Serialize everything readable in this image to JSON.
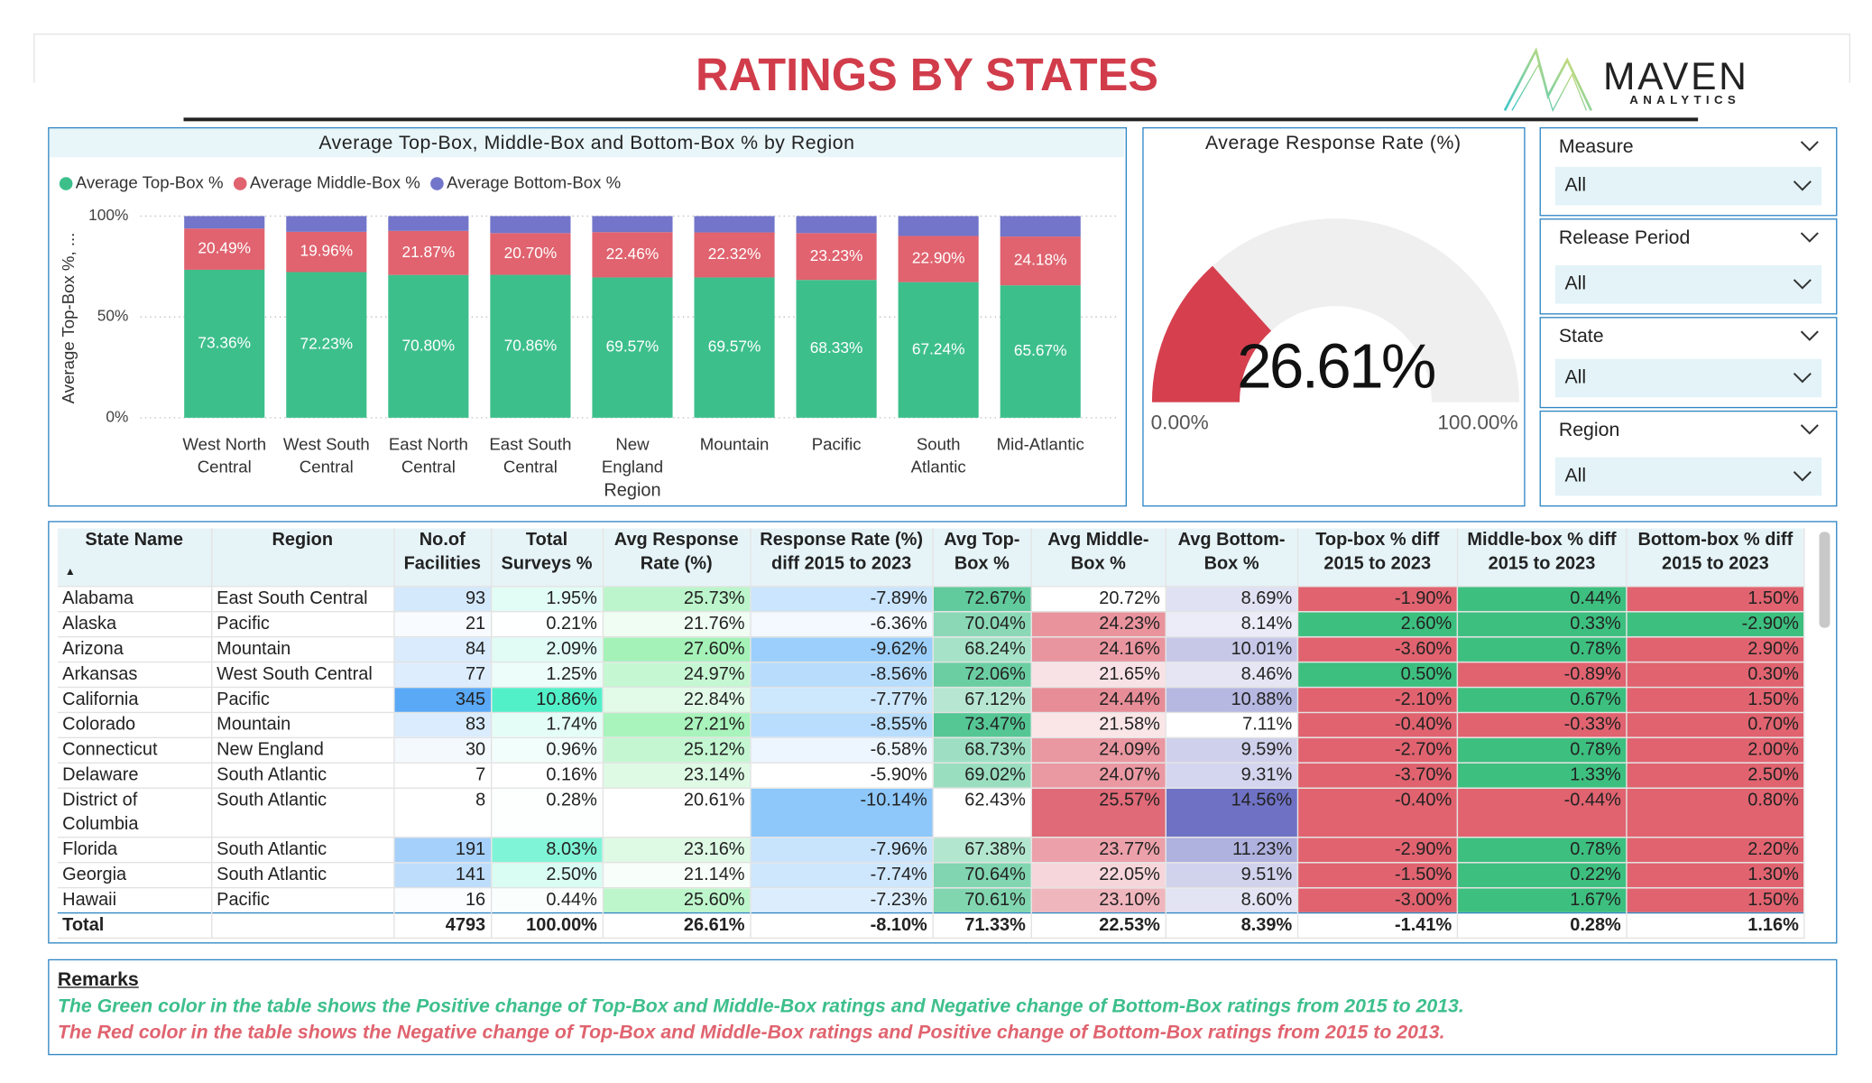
{
  "header": {
    "title": "RATINGS BY STATES",
    "logo_name": "MAVEN",
    "logo_sub": "ANALYTICS"
  },
  "chart_data": [
    {
      "type": "bar",
      "stacked": true,
      "title": "Average Top-Box, Middle-Box and Bottom-Box % by Region",
      "xlabel": "Region",
      "ylabel": "Average Top-Box %, ...",
      "legend": "top-left",
      "grid": true,
      "categories": [
        "West North Central",
        "West South Central",
        "East North Central",
        "East South Central",
        "New England",
        "Mountain",
        "Pacific",
        "South Atlantic",
        "Mid-Atlantic"
      ],
      "series": [
        {
          "name": "Average Top-Box %",
          "color": "#3dbf8c",
          "values": [
            73.36,
            72.23,
            70.8,
            70.86,
            69.57,
            69.57,
            68.33,
            67.24,
            65.67
          ],
          "value_labels": [
            "73.36%",
            "72.23%",
            "70.80%",
            "70.86%",
            "69.57%",
            "69.57%",
            "68.33%",
            "67.24%",
            "65.67%"
          ]
        },
        {
          "name": "Average Middle-Box %",
          "color": "#e0636f",
          "values": [
            20.49,
            19.96,
            21.87,
            20.7,
            22.46,
            22.32,
            23.23,
            22.9,
            24.18
          ],
          "value_labels": [
            "20.49%",
            "19.96%",
            "21.87%",
            "20.70%",
            "22.46%",
            "22.32%",
            "23.23%",
            "22.90%",
            "24.18%"
          ]
        },
        {
          "name": "Average Bottom-Box %",
          "color": "#7275c9",
          "values": [
            6.15,
            7.81,
            7.33,
            8.44,
            7.97,
            8.11,
            8.44,
            9.86,
            10.15
          ]
        }
      ],
      "ylim": [
        0,
        100
      ],
      "yticks": [
        {
          "value": 0,
          "label": "0%"
        },
        {
          "value": 50,
          "label": "50%"
        },
        {
          "value": 100,
          "label": "100%"
        }
      ]
    },
    {
      "type": "gauge",
      "title": "Average Response Rate (%)",
      "value": 26.61,
      "value_label": "26.61%",
      "color": "#d6404e",
      "ylim": [
        0,
        100
      ],
      "yticks": [
        {
          "value": 0,
          "label": "0.00%"
        },
        {
          "value": 100,
          "label": "100.00%"
        }
      ]
    }
  ],
  "filters": [
    {
      "label": "Measure",
      "value": "All"
    },
    {
      "label": "Release Period",
      "value": "All"
    },
    {
      "label": "State",
      "value": "All"
    },
    {
      "label": "Region",
      "value": "All"
    }
  ],
  "table": {
    "columns": [
      "State Name",
      "Region",
      "No.of Facilities",
      "Total Surveys %",
      "Avg Response Rate (%)",
      "Response Rate (%) diff 2015 to 2023",
      "Avg Top-Box %",
      "Avg Middle-Box %",
      "Avg Bottom-Box %",
      "Top-box % diff 2015 to 2023",
      "Middle-box % diff 2015 to 2023",
      "Bottom-box % diff 2015 to 2023"
    ],
    "rows": [
      [
        "Alabama",
        "East South Central",
        "93",
        "1.95%",
        "25.73%",
        "-7.89%",
        "72.67%",
        "20.72%",
        "8.69%",
        "-1.90%",
        "0.44%",
        "1.50%"
      ],
      [
        "Alaska",
        "Pacific",
        "21",
        "0.21%",
        "21.76%",
        "-6.36%",
        "70.04%",
        "24.23%",
        "8.14%",
        "2.60%",
        "0.33%",
        "-2.90%"
      ],
      [
        "Arizona",
        "Mountain",
        "84",
        "2.09%",
        "27.60%",
        "-9.62%",
        "68.24%",
        "24.16%",
        "10.01%",
        "-3.60%",
        "0.78%",
        "2.90%"
      ],
      [
        "Arkansas",
        "West South Central",
        "77",
        "1.25%",
        "24.97%",
        "-8.56%",
        "72.06%",
        "21.65%",
        "8.46%",
        "0.50%",
        "-0.89%",
        "0.30%"
      ],
      [
        "California",
        "Pacific",
        "345",
        "10.86%",
        "22.84%",
        "-7.77%",
        "67.12%",
        "24.44%",
        "10.88%",
        "-2.10%",
        "0.67%",
        "1.50%"
      ],
      [
        "Colorado",
        "Mountain",
        "83",
        "1.74%",
        "27.21%",
        "-8.55%",
        "73.47%",
        "21.58%",
        "7.11%",
        "-0.40%",
        "-0.33%",
        "0.70%"
      ],
      [
        "Connecticut",
        "New England",
        "30",
        "0.96%",
        "25.12%",
        "-6.58%",
        "68.73%",
        "24.09%",
        "9.59%",
        "-2.70%",
        "0.78%",
        "2.00%"
      ],
      [
        "Delaware",
        "South Atlantic",
        "7",
        "0.16%",
        "23.14%",
        "-5.90%",
        "69.02%",
        "24.07%",
        "9.31%",
        "-3.70%",
        "1.33%",
        "2.50%"
      ],
      [
        "District of Columbia",
        "South Atlantic",
        "8",
        "0.28%",
        "20.61%",
        "-10.14%",
        "62.43%",
        "25.57%",
        "14.56%",
        "-0.40%",
        "-0.44%",
        "0.80%"
      ],
      [
        "Florida",
        "South Atlantic",
        "191",
        "8.03%",
        "23.16%",
        "-7.96%",
        "67.38%",
        "23.77%",
        "11.23%",
        "-2.90%",
        "0.78%",
        "2.20%"
      ],
      [
        "Georgia",
        "South Atlantic",
        "141",
        "2.50%",
        "21.14%",
        "-7.74%",
        "70.64%",
        "22.05%",
        "9.51%",
        "-1.50%",
        "0.22%",
        "1.30%"
      ],
      [
        "Hawaii",
        "Pacific",
        "16",
        "0.44%",
        "25.60%",
        "-7.23%",
        "70.61%",
        "23.10%",
        "8.60%",
        "-3.00%",
        "1.67%",
        "1.50%"
      ]
    ],
    "total": [
      "Total",
      "4793",
      "100.00%",
      "26.61%",
      "-8.10%",
      "71.33%",
      "22.53%",
      "8.39%",
      "-1.41%",
      "0.28%",
      "1.16%"
    ]
  },
  "remarks": {
    "title": "Remarks",
    "lines": [
      "The Green color in the table shows the Positive change of Top-Box and Middle-Box ratings and Negative change of Bottom-Box ratings from 2015 to 2013.",
      "The Red color in the table shows the Negative change of Top-Box and Middle-Box ratings and Positive change of Bottom-Box ratings from 2015 to 2013."
    ]
  }
}
